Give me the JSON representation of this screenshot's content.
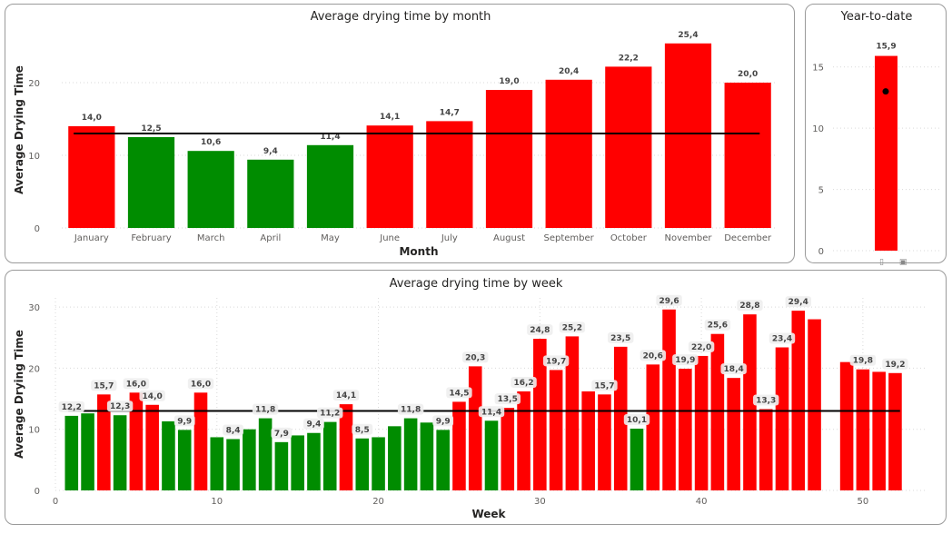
{
  "colors": {
    "above": "#ff0000",
    "below": "#008c00",
    "reference": "#000000"
  },
  "chart_data": [
    {
      "id": "month",
      "type": "bar",
      "title": "Average drying time by month",
      "xlabel": "Month",
      "ylabel": "Average Drying Time",
      "ylim": [
        0,
        27
      ],
      "yticks": [
        0,
        10,
        20
      ],
      "reference_line": 13,
      "grid": true,
      "categories": [
        "January",
        "February",
        "March",
        "April",
        "May",
        "June",
        "July",
        "August",
        "September",
        "October",
        "November",
        "December"
      ],
      "values": [
        14.0,
        12.5,
        10.6,
        9.4,
        11.4,
        14.1,
        14.7,
        19.0,
        20.4,
        22.2,
        25.4,
        20.0
      ],
      "labels": [
        "14,0",
        "12,5",
        "10,6",
        "9,4",
        "11,4",
        "14,1",
        "14,7",
        "19,0",
        "20,4",
        "22,2",
        "25,4",
        "20,0"
      ]
    },
    {
      "id": "ytd",
      "type": "bar",
      "title": "Year-to-date",
      "ylim": [
        0,
        17.5
      ],
      "yticks": [
        0,
        5,
        10,
        15
      ],
      "grid": true,
      "values": [
        15.9
      ],
      "labels": [
        "15,9"
      ],
      "target_marker": 13
    },
    {
      "id": "week",
      "type": "bar",
      "title": "Average drying time by week",
      "xlabel": "Week",
      "ylabel": "Average Drying Time",
      "xlim": [
        0,
        54
      ],
      "xticks": [
        0,
        10,
        20,
        30,
        40,
        50
      ],
      "ylim": [
        0,
        31.5
      ],
      "yticks": [
        0,
        10,
        20,
        30
      ],
      "reference_line": 13,
      "grid": true,
      "x": [
        1,
        2,
        3,
        4,
        5,
        6,
        7,
        8,
        9,
        10,
        11,
        12,
        13,
        14,
        15,
        16,
        17,
        18,
        19,
        20,
        21,
        22,
        23,
        24,
        25,
        26,
        27,
        28,
        29,
        30,
        31,
        32,
        33,
        34,
        35,
        36,
        37,
        38,
        39,
        40,
        41,
        42,
        43,
        44,
        45,
        46,
        47,
        49,
        50,
        51,
        52
      ],
      "values": [
        12.2,
        12.6,
        15.7,
        12.3,
        16.0,
        14.0,
        11.3,
        9.9,
        16.0,
        8.7,
        8.4,
        10.0,
        11.8,
        7.9,
        9.0,
        9.4,
        11.2,
        14.1,
        8.5,
        8.7,
        10.5,
        11.8,
        11.1,
        9.9,
        14.5,
        20.3,
        11.4,
        13.5,
        16.2,
        24.8,
        19.7,
        25.2,
        16.2,
        15.7,
        23.5,
        10.1,
        20.6,
        29.6,
        19.9,
        22.0,
        25.6,
        18.4,
        28.8,
        13.3,
        23.4,
        29.4,
        28.0,
        21.0,
        19.8,
        19.4,
        19.2
      ],
      "labels": [
        "12,2",
        "",
        "15,7",
        "12,3",
        "16,0",
        "14,0",
        "",
        "9,9",
        "16,0",
        "",
        "8,4",
        "",
        "11,8",
        "7,9",
        "",
        "9,4",
        "11,2",
        "14,1",
        "8,5",
        "",
        "",
        "11,8",
        "",
        "9,9",
        "14,5",
        "20,3",
        "11,4",
        "13,5",
        "16,2",
        "24,8",
        "19,7",
        "25,2",
        "",
        "15,7",
        "23,5",
        "10,1",
        "20,6",
        "29,6",
        "19,9",
        "22,0",
        "25,6",
        "18,4",
        "28,8",
        "13,3",
        "23,4",
        "29,4",
        "",
        "",
        "19,8",
        "",
        "19,2"
      ]
    }
  ]
}
